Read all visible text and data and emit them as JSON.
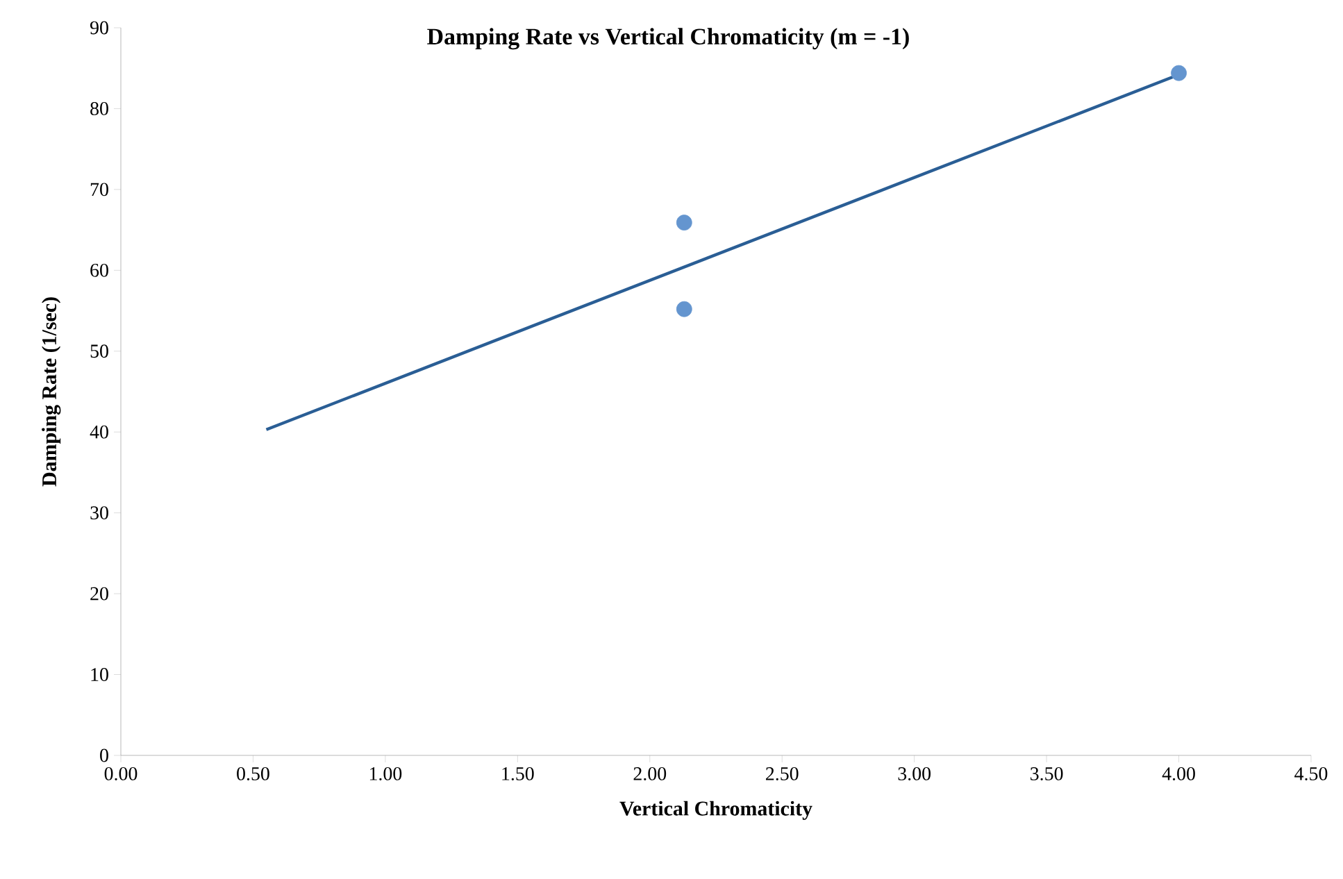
{
  "chart_data": {
    "type": "scatter",
    "title": "Damping Rate vs Vertical Chromaticity (m = -1)",
    "xlabel": "Vertical Chromaticity",
    "ylabel": "Damping Rate (1/sec)",
    "xlim": [
      0,
      4.5
    ],
    "ylim": [
      0,
      90
    ],
    "xticks": [
      {
        "value": 0,
        "label": "0.00"
      },
      {
        "value": 0.5,
        "label": "0.50"
      },
      {
        "value": 1,
        "label": "1.00"
      },
      {
        "value": 1.5,
        "label": "1.50"
      },
      {
        "value": 2,
        "label": "2.00"
      },
      {
        "value": 2.5,
        "label": "2.50"
      },
      {
        "value": 3,
        "label": "3.00"
      },
      {
        "value": 3.5,
        "label": "3.50"
      },
      {
        "value": 4,
        "label": "4.00"
      },
      {
        "value": 4.5,
        "label": "4.50"
      }
    ],
    "yticks": [
      0,
      10,
      20,
      30,
      40,
      50,
      60,
      70,
      80,
      90
    ],
    "grid": false,
    "series": [
      {
        "color": "#6495cf",
        "marker": "circle",
        "x": [
          2.13,
          2.13,
          4.0
        ],
        "values": [
          65.9,
          55.2,
          84.4
        ]
      },
      {
        "type": "line",
        "color": "#2a5e95",
        "marker": "none",
        "line_style": "solid",
        "x": [
          0.55,
          4.0
        ],
        "values": [
          40.3,
          84.2
        ]
      }
    ]
  }
}
